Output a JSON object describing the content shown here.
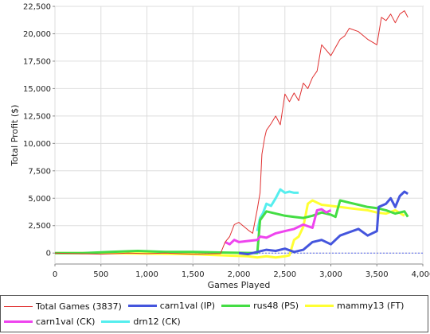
{
  "chart_data": {
    "type": "line",
    "title": "",
    "xlabel": "Games Played",
    "ylabel": "Total Profit ($)",
    "xlim": [
      0,
      4000
    ],
    "ylim": [
      -1000,
      22500
    ],
    "x_ticks": [
      0,
      500,
      1000,
      1500,
      2000,
      2500,
      3000,
      3500,
      4000
    ],
    "x_tick_labels": [
      "0",
      "500",
      "1,000",
      "1,500",
      "2,000",
      "2,500",
      "3,000",
      "3,500",
      "4,000"
    ],
    "y_ticks": [
      0,
      2500,
      5000,
      7500,
      10000,
      12500,
      15000,
      17500,
      20000,
      22500
    ],
    "y_tick_labels": [
      "0",
      "2,500",
      "5,000",
      "7,500",
      "10,000",
      "12,500",
      "15,000",
      "17,500",
      "20,000",
      "22,500"
    ],
    "grid": true,
    "legend_position": "bottom",
    "series": [
      {
        "name": "Total Games (3837)",
        "color": "#e03030",
        "width": 1,
        "x": [
          0,
          200,
          500,
          800,
          1000,
          1200,
          1500,
          1800,
          1850,
          1900,
          1950,
          2000,
          2100,
          2150,
          2200,
          2230,
          2250,
          2280,
          2300,
          2350,
          2400,
          2450,
          2500,
          2550,
          2600,
          2650,
          2700,
          2750,
          2800,
          2850,
          2900,
          2950,
          3000,
          3100,
          3150,
          3200,
          3300,
          3400,
          3500,
          3550,
          3600,
          3650,
          3700,
          3750,
          3800,
          3837
        ],
        "y": [
          0,
          -50,
          -100,
          0,
          -50,
          0,
          -100,
          -50,
          1000,
          1500,
          2600,
          2800,
          2100,
          1800,
          4000,
          5500,
          9000,
          10500,
          11200,
          11800,
          12500,
          11700,
          14500,
          13800,
          14600,
          13900,
          15500,
          15000,
          16000,
          16600,
          19000,
          18500,
          18000,
          19500,
          19800,
          20500,
          20200,
          19500,
          19000,
          21500,
          21200,
          21800,
          21000,
          21800,
          22100,
          21500
        ]
      },
      {
        "name": "carn1val (IP)",
        "color": "#4455dd",
        "width": 3,
        "x": [
          2000,
          2100,
          2200,
          2300,
          2400,
          2500,
          2600,
          2700,
          2800,
          2900,
          3000,
          3100,
          3200,
          3300,
          3400,
          3500,
          3520,
          3600,
          3650,
          3700,
          3750,
          3800,
          3837
        ],
        "y": [
          0,
          -100,
          100,
          300,
          200,
          400,
          100,
          300,
          1000,
          1200,
          800,
          1600,
          1900,
          2200,
          1600,
          2000,
          4200,
          4500,
          5000,
          4200,
          5200,
          5600,
          5400
        ]
      },
      {
        "name": "rus48 (PS)",
        "color": "#44dd44",
        "width": 3,
        "x": [
          0,
          300,
          600,
          900,
          1200,
          1500,
          1800,
          2200,
          2230,
          2300,
          2400,
          2500,
          2600,
          2700,
          2800,
          2900,
          3000,
          3050,
          3100,
          3200,
          3300,
          3400,
          3500,
          3600,
          3700,
          3800,
          3837
        ],
        "y": [
          0,
          0,
          100,
          200,
          100,
          100,
          50,
          0,
          3000,
          3800,
          3600,
          3400,
          3300,
          3200,
          3400,
          3700,
          3500,
          3300,
          4800,
          4600,
          4400,
          4200,
          4100,
          3900,
          3600,
          3800,
          3300
        ]
      },
      {
        "name": "mammy13 (FT)",
        "color": "#ffff33",
        "width": 3,
        "x": [
          0,
          500,
          1000,
          1500,
          1800,
          2100,
          2200,
          2300,
          2400,
          2500,
          2550,
          2600,
          2650,
          2700,
          2750,
          2800,
          2850,
          2900,
          3000,
          3100,
          3200,
          3300,
          3400,
          3500,
          3600,
          3700,
          3800
        ],
        "y": [
          0,
          0,
          -50,
          -100,
          -200,
          -300,
          -400,
          -300,
          -400,
          -300,
          -200,
          1200,
          1500,
          2400,
          4500,
          4800,
          4600,
          4400,
          4300,
          4200,
          4100,
          4000,
          3900,
          3700,
          3600,
          3900,
          3400
        ]
      },
      {
        "name": "carn1val (CK)",
        "color": "#ee44ee",
        "width": 3,
        "x": [
          1850,
          1900,
          1950,
          2000,
          2100,
          2200,
          2230,
          2300,
          2400,
          2500,
          2600,
          2700,
          2800,
          2850,
          2900,
          2950,
          3000
        ],
        "y": [
          1000,
          800,
          1200,
          1000,
          1100,
          1200,
          1500,
          1400,
          1800,
          2000,
          2200,
          2600,
          2300,
          3900,
          4000,
          3700,
          3900
        ]
      },
      {
        "name": "drn12 (CK)",
        "color": "#55eeee",
        "width": 3,
        "x": [
          2200,
          2230,
          2260,
          2300,
          2350,
          2400,
          2450,
          2500,
          2550,
          2600,
          2650
        ],
        "y": [
          2000,
          3200,
          3600,
          4500,
          4300,
          5000,
          5800,
          5500,
          5600,
          5500,
          5500
        ]
      }
    ]
  }
}
